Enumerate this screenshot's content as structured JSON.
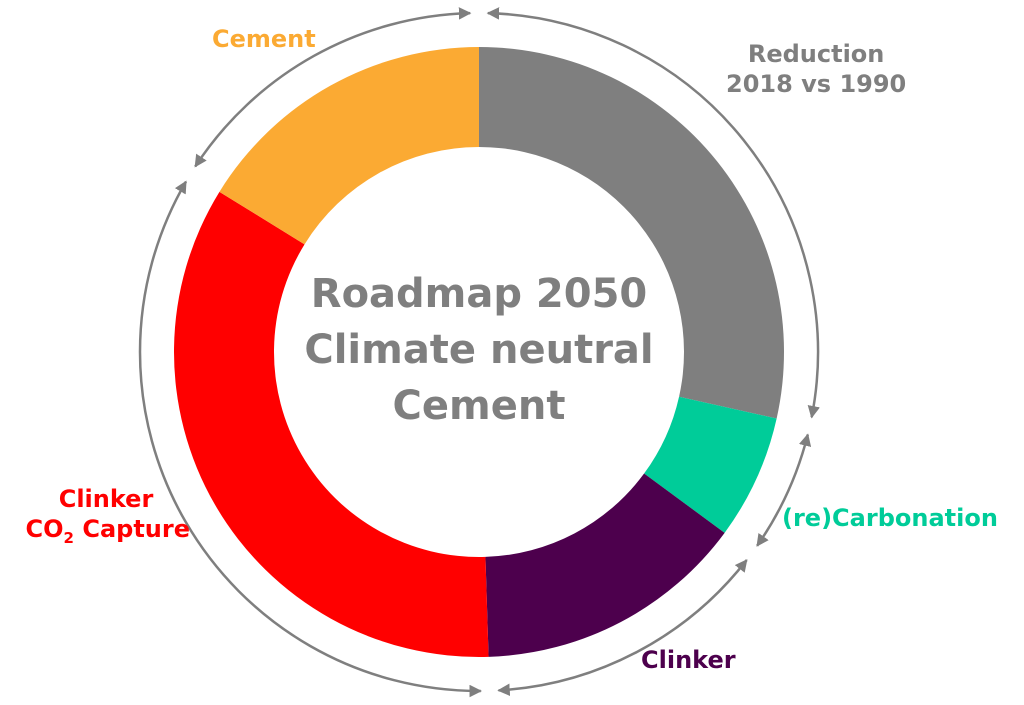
{
  "chart_data": {
    "type": "pie",
    "variant": "donut",
    "title_lines": [
      "Roadmap 2050",
      "Climate neutral",
      "Cement"
    ],
    "categories": [
      "Reduction 2018 vs 1990",
      "(re)Carbonation",
      "Clinker",
      "Clinker CO2 Capture",
      "Cement"
    ],
    "values": [
      28.5,
      6.6,
      14.4,
      34.3,
      16.2
    ],
    "unit": "% of ring (estimated)",
    "colors": [
      "#7f7f7f",
      "#00cc99",
      "#4d004d",
      "#ff0000",
      "#fbaa33"
    ],
    "labels": {
      "reduction": [
        "Reduction",
        "2018 vs 1990"
      ],
      "recarbonation": "(re)Carbonation",
      "clinker": "Clinker",
      "capture_line1": "Clinker",
      "capture_co": "CO",
      "capture_sub": "2",
      "capture_rest": " Capture",
      "cement": "Cement"
    },
    "outer_arrows": "double-headed arcs around each segment",
    "arrow_color": "#7f7f7f"
  }
}
